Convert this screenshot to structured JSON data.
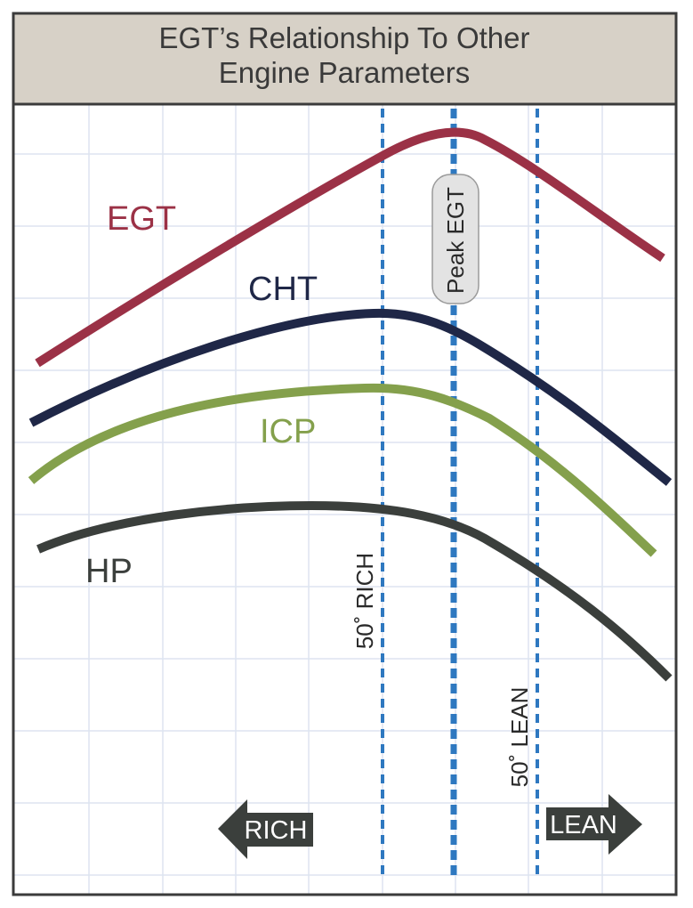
{
  "title_lines": [
    "EGT’s Relationship To Other",
    "Engine Parameters"
  ],
  "colors": {
    "frame": "#3b3b3b",
    "title_bg": "#d7d1c7",
    "grid": "#dde4f0",
    "dashed_line": "#2e78c0",
    "peak_box_fill": "#e3e3e3",
    "peak_box_stroke": "#9a9a9a",
    "arrow_fill": "#3b3f3c"
  },
  "curves": [
    {
      "key": "egt",
      "label": "EGT",
      "color": "#9b3146"
    },
    {
      "key": "cht",
      "label": "CHT",
      "color": "#1f2747"
    },
    {
      "key": "icp",
      "label": "ICP",
      "color": "#84a04c"
    },
    {
      "key": "hp",
      "label": "HP",
      "color": "#3b3f3c"
    }
  ],
  "markers": {
    "rich50": "50˚ RICH",
    "peak": "Peak EGT",
    "lean50": "50˚ LEAN"
  },
  "arrows": {
    "rich": "RICH",
    "lean": "LEAN"
  }
}
